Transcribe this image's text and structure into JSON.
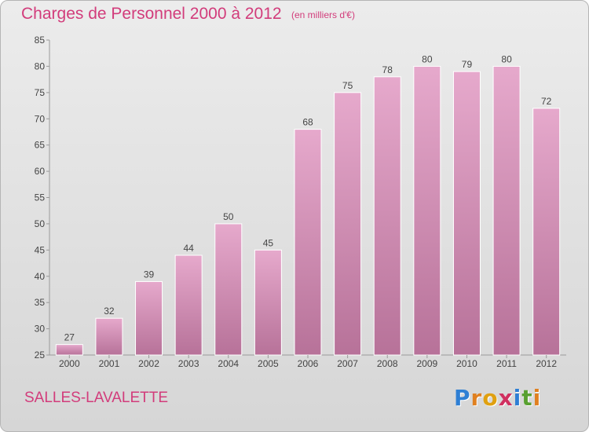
{
  "header": {
    "title": "Charges de Personnel 2000 à 2012",
    "subtitle": "(en milliers d'€)"
  },
  "footer": {
    "town": "SALLES-LAVALETTE",
    "logo_text": "Proxiti",
    "logo_colors": [
      "#2e7fd4",
      "#e08020",
      "#e0a010",
      "#d03060",
      "#2e7fd4",
      "#58a030",
      "#e08020"
    ]
  },
  "colors": {
    "accent": "#d23c7b",
    "bar_light": "#e6a9cc",
    "bar_dark": "#b77299",
    "bar_edge": "#ffffff"
  },
  "chart_data": {
    "type": "bar",
    "title": "Charges de Personnel 2000 à 2012",
    "categories": [
      "2000",
      "2001",
      "2002",
      "2003",
      "2004",
      "2005",
      "2006",
      "2007",
      "2008",
      "2009",
      "2010",
      "2011",
      "2012"
    ],
    "values": [
      27,
      32,
      39,
      44,
      50,
      45,
      68,
      75,
      78,
      80,
      79,
      80,
      72
    ],
    "ylim": [
      25,
      85
    ],
    "yticks": [
      "25",
      "30",
      "35",
      "40",
      "45",
      "50",
      "55",
      "60",
      "65",
      "70",
      "75",
      "80",
      "85"
    ],
    "xlabel": "",
    "ylabel": "",
    "grid": false,
    "legend": "none"
  }
}
